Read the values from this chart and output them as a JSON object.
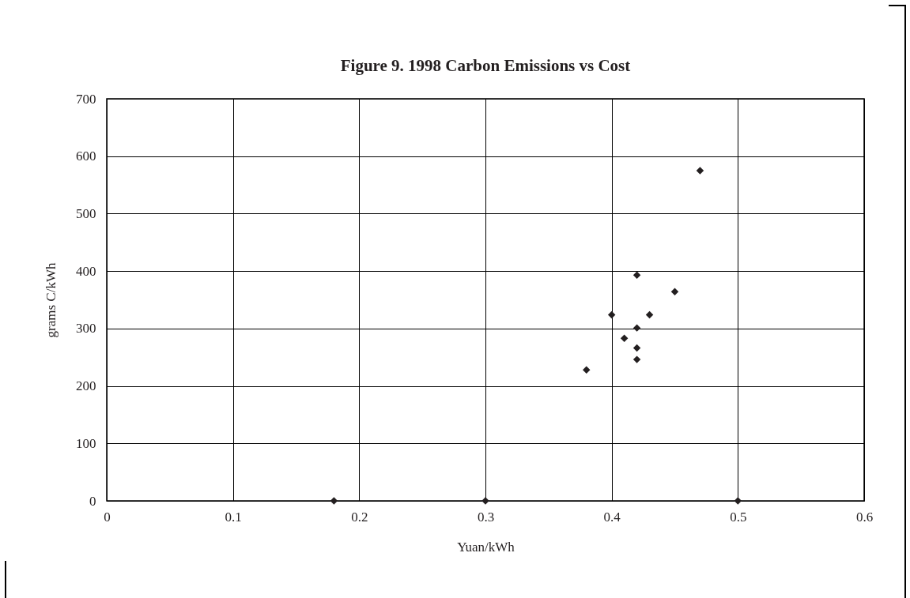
{
  "chart_data": {
    "type": "scatter",
    "title": "Figure 9. 1998 Carbon Emissions vs Cost",
    "xlabel": "Yuan/kWh",
    "ylabel": "grams C/kWh",
    "x": [
      0.18,
      0.3,
      0.5,
      0.38,
      0.4,
      0.41,
      0.42,
      0.42,
      0.42,
      0.42,
      0.43,
      0.45,
      0.47
    ],
    "values": [
      0,
      0,
      0,
      228,
      324,
      283,
      393,
      301,
      266,
      246,
      324,
      364,
      575
    ],
    "color": "#231f20",
    "marker": "diamond",
    "xlim": [
      0,
      0.6
    ],
    "xticks": [
      {
        "value": 0,
        "label": "0"
      },
      0.1,
      0.2,
      0.3,
      0.4,
      0.5,
      0.6
    ],
    "ylim": [
      0,
      700
    ],
    "yticks": [
      0,
      100,
      200,
      300,
      400,
      500,
      600,
      700
    ],
    "grid": true
  }
}
